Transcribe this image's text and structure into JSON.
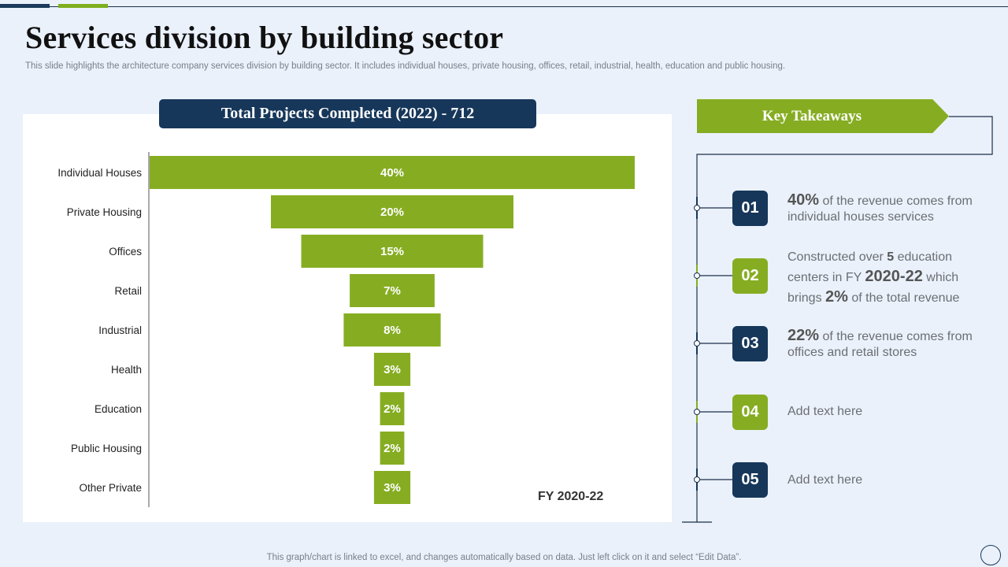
{
  "title": "Services division by building sector",
  "subtitle": "This slide highlights the architecture company services division by building sector. It includes individual houses, private housing, offices, retail, industrial, health, education and public housing.",
  "chart_header": "Total Projects Completed (2022) - 712",
  "fy_label": "FY 2020-22",
  "chart_data": {
    "type": "bar",
    "title": "Total Projects Completed (2022) - 712",
    "orientation": "horizontal-funnel",
    "categories": [
      "Individual Houses",
      "Private Housing",
      "Offices",
      "Retail",
      "Industrial",
      "Health",
      "Education",
      "Public Housing",
      "Other Private"
    ],
    "values": [
      40,
      20,
      15,
      7,
      8,
      3,
      2,
      2,
      3
    ],
    "value_labels": [
      "40%",
      "20%",
      "15%",
      "7%",
      "8%",
      "3%",
      "2%",
      "2%",
      "3%"
    ],
    "xlabel": "FY 2020-22",
    "ylabel": "",
    "xlim": [
      0,
      40
    ],
    "bar_color": "#86ad22"
  },
  "takeaways": {
    "banner": "Key Takeaways",
    "items": [
      {
        "num": "01",
        "color": "navy",
        "b1": "40%",
        "t1": " of the revenue comes from individual houses services"
      },
      {
        "num": "02",
        "color": "green",
        "t0": "Constructed over ",
        "b0": "5",
        "t1a": " education centers in FY ",
        "b1": "2020-22",
        "t1b": " which brings ",
        "b2": "2%",
        "t2": " of the total revenue"
      },
      {
        "num": "03",
        "color": "navy",
        "b1": "22%",
        "t1": " of the revenue comes from offices and retail stores"
      },
      {
        "num": "04",
        "color": "green",
        "t1": "Add text here"
      },
      {
        "num": "05",
        "color": "navy",
        "t1": "Add text here"
      }
    ]
  },
  "footer": "This graph/chart is linked to excel,  and changes automatically based on data. Just left click on it and select “Edit Data”.",
  "colors": {
    "navy": "#16375a",
    "green": "#86ad22",
    "background": "#eaf1fb"
  }
}
